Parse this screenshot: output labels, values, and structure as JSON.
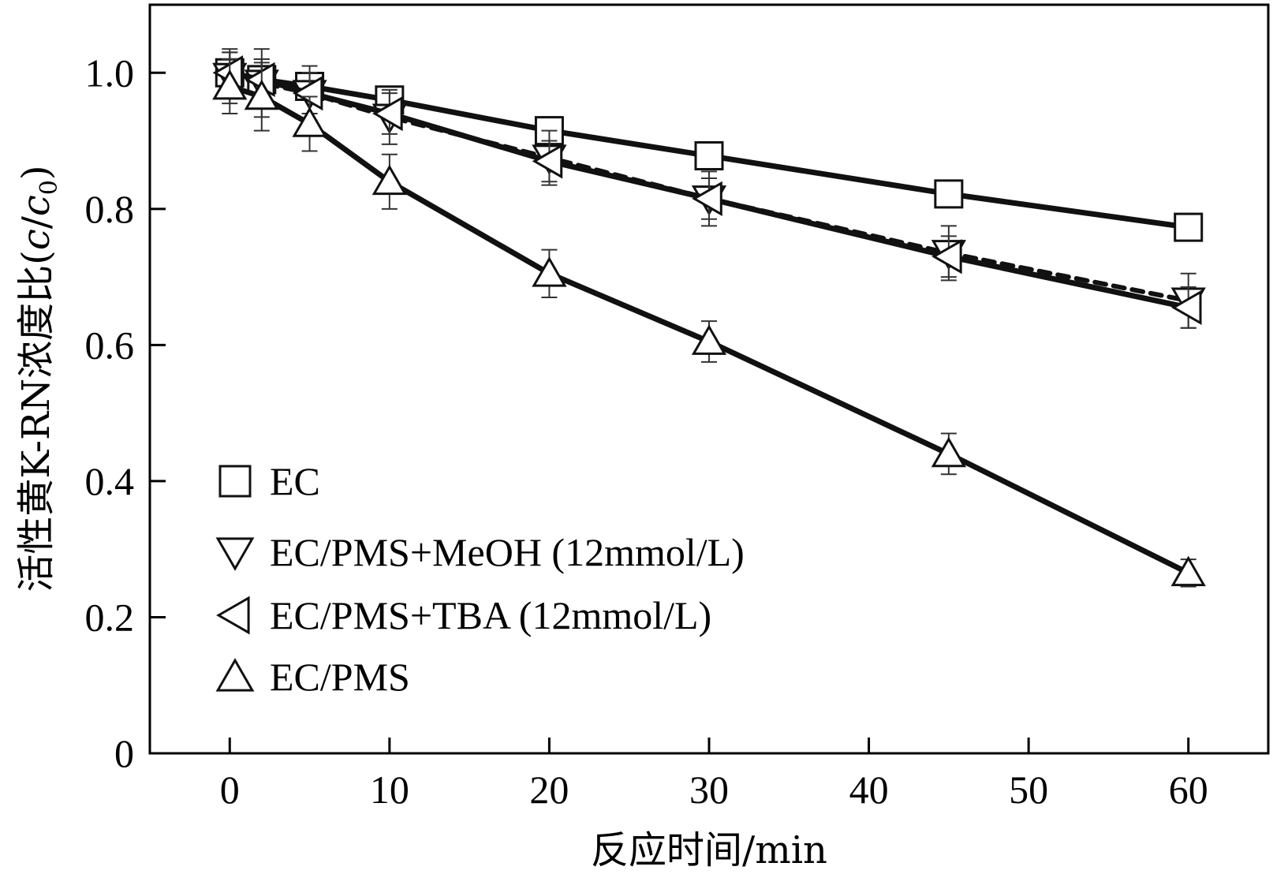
{
  "chart_data": {
    "type": "line",
    "title": "",
    "xlabel": "反应时间/min",
    "ylabel": "活性黄K-RN浓度比(c/c₀)",
    "ylabel_main": "活性黄K-RN浓度比(",
    "ylabel_var": "c",
    "ylabel_slash": "/",
    "ylabel_var2": "c",
    "ylabel_sub": "0",
    "ylabel_close": ")",
    "xlim": [
      -5,
      65
    ],
    "ylim": [
      0,
      1.1
    ],
    "xticks": [
      0,
      10,
      20,
      30,
      40,
      50,
      60
    ],
    "xtick_labels": [
      "0",
      "10",
      "20",
      "30",
      "40",
      "50",
      "60"
    ],
    "yticks": [
      0,
      0.2,
      0.4,
      0.6,
      0.8,
      1.0
    ],
    "ytick_labels": [
      "0",
      "0.2",
      "0.4",
      "0.6",
      "0.8",
      "1.0"
    ],
    "grid": false,
    "legend_position": "bottom-left",
    "series": [
      {
        "name": "EC",
        "marker": "square",
        "line": "solid",
        "x": [
          0,
          2,
          5,
          10,
          20,
          30,
          45,
          60
        ],
        "y": [
          1.0,
          0.99,
          0.98,
          0.96,
          0.915,
          0.878,
          0.822,
          0.773
        ],
        "err": [
          0.03,
          0.03,
          0.02,
          0.02,
          0.02,
          0.02,
          0.02,
          0.02
        ]
      },
      {
        "name": "EC/PMS+MeOH (12mmol/L)",
        "marker": "triangle-down",
        "line": "dashed",
        "x": [
          0,
          2,
          5,
          10,
          20,
          30,
          45,
          60
        ],
        "y": [
          0.995,
          0.985,
          0.97,
          0.935,
          0.875,
          0.815,
          0.735,
          0.665
        ],
        "err": [
          0.04,
          0.05,
          0.04,
          0.04,
          0.04,
          0.04,
          0.04,
          0.04
        ]
      },
      {
        "name": "EC/PMS+TBA (12mmol/L)",
        "marker": "triangle-left",
        "line": "solid",
        "x": [
          0,
          2,
          5,
          10,
          20,
          30,
          45,
          60
        ],
        "y": [
          1.0,
          0.99,
          0.97,
          0.94,
          0.87,
          0.815,
          0.73,
          0.655
        ],
        "err": [
          0.03,
          0.03,
          0.03,
          0.03,
          0.03,
          0.03,
          0.03,
          0.03
        ]
      },
      {
        "name": "EC/PMS",
        "marker": "triangle-up",
        "line": "solid",
        "x": [
          0,
          2,
          5,
          10,
          20,
          30,
          45,
          60
        ],
        "y": [
          0.98,
          0.965,
          0.925,
          0.84,
          0.705,
          0.605,
          0.44,
          0.265
        ],
        "err": [
          0.04,
          0.05,
          0.04,
          0.04,
          0.035,
          0.03,
          0.03,
          0.02
        ]
      }
    ]
  }
}
